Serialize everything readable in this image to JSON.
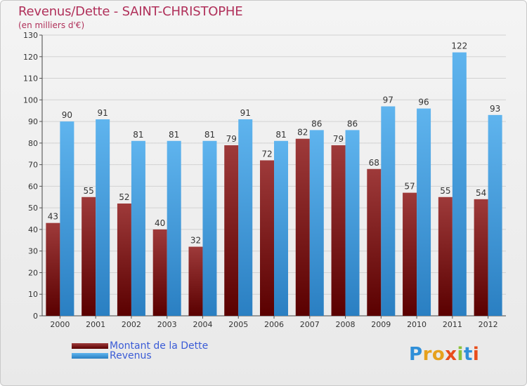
{
  "title": "Revenus/Dette - SAINT-CHRISTOPHE",
  "subtitle": "(en milliers d'€)",
  "colors": {
    "dette_dark": "#5a0000",
    "dette_light": "#9e3a3a",
    "revenus_light": "#5fb4ee",
    "revenus_dark": "#2a7fc2",
    "title": "#b0305a",
    "legend_text": "#3a5bd6"
  },
  "legend": {
    "dette_label": "Montant de la Dette",
    "revenus_label": "Revenus"
  },
  "logo": {
    "text": "Proxiti",
    "letter_colors": [
      "#2f8fd8",
      "#e6a11d",
      "#e6a11d",
      "#e84d1b",
      "#8bc23a",
      "#2f8fd8",
      "#e84d1b"
    ]
  },
  "chart_data": {
    "type": "bar",
    "categories": [
      "2000",
      "2001",
      "2002",
      "2003",
      "2004",
      "2005",
      "2006",
      "2007",
      "2008",
      "2009",
      "2010",
      "2011",
      "2012"
    ],
    "series": [
      {
        "name": "Montant de la Dette",
        "values": [
          43,
          55,
          52,
          40,
          32,
          79,
          72,
          82,
          79,
          68,
          57,
          55,
          54
        ]
      },
      {
        "name": "Revenus",
        "values": [
          90,
          91,
          81,
          81,
          81,
          91,
          81,
          86,
          86,
          97,
          96,
          122,
          93
        ]
      }
    ],
    "ylim": [
      0,
      130
    ],
    "yticks": [
      0,
      10,
      20,
      30,
      40,
      50,
      60,
      70,
      80,
      90,
      100,
      110,
      120,
      130
    ],
    "grid": true,
    "legend_position": "bottom-left"
  }
}
